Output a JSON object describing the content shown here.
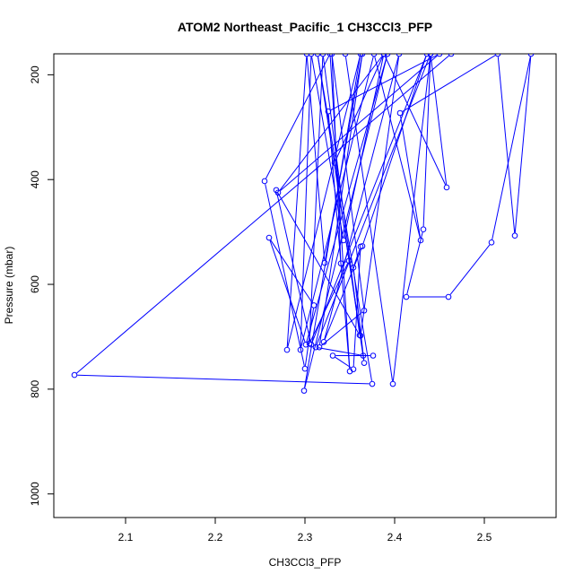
{
  "chart_data": {
    "type": "line",
    "title": "ATOM2 Northeast_Pacific_1 CH3CCl3_PFP",
    "xlabel": "CH3CCl3_PFP",
    "ylabel": "Pressure (mbar)",
    "xlim": [
      2.02,
      2.58
    ],
    "ylim": [
      1045,
      160
    ],
    "y_reversed": true,
    "x_ticks": [
      2.1,
      2.2,
      2.3,
      2.4,
      2.5
    ],
    "x_tick_labels": [
      "2.1",
      "2.2",
      "2.3",
      "2.4",
      "2.5"
    ],
    "y_ticks": [
      200,
      400,
      600,
      800,
      1000
    ],
    "y_tick_labels": [
      "200",
      "400",
      "600",
      "800",
      "1000"
    ],
    "line_color": "#0000ff",
    "marker": "open-circle",
    "series": [
      {
        "points": [
          [
            2.345,
            160
          ],
          [
            2.398,
            790
          ],
          [
            2.44,
            160
          ],
          [
            2.432,
            495
          ],
          [
            2.413,
            624
          ],
          [
            2.46,
            624
          ],
          [
            2.508,
            520
          ],
          [
            2.552,
            160
          ],
          [
            2.534,
            507
          ],
          [
            2.515,
            160
          ],
          [
            2.406,
            273
          ],
          [
            2.429,
            516
          ],
          [
            2.377,
            160
          ],
          [
            2.295,
            725
          ],
          [
            2.307,
            160
          ],
          [
            2.343,
            516
          ],
          [
            2.388,
            160
          ],
          [
            2.333,
            368
          ],
          [
            2.366,
            750
          ],
          [
            2.354,
            568
          ],
          [
            2.362,
            528
          ],
          [
            2.354,
            762
          ],
          [
            2.331,
            736
          ],
          [
            2.376,
            736
          ],
          [
            2.365,
            736
          ],
          [
            2.312,
            720
          ],
          [
            2.44,
            160
          ],
          [
            2.458,
            415
          ],
          [
            2.388,
            160
          ],
          [
            2.27,
            425
          ],
          [
            2.45,
            160
          ],
          [
            2.326,
            270
          ],
          [
            2.35,
            766
          ],
          [
            2.328,
            160
          ],
          [
            2.255,
            403
          ],
          [
            2.3,
            761
          ],
          [
            2.31,
            640
          ],
          [
            2.26,
            511
          ],
          [
            2.301,
            715
          ],
          [
            2.392,
            160
          ],
          [
            2.299,
            803
          ],
          [
            2.362,
            160
          ],
          [
            2.28,
            725
          ],
          [
            2.302,
            160
          ],
          [
            2.322,
            559
          ],
          [
            2.364,
            160
          ],
          [
            2.316,
            720
          ],
          [
            2.366,
            650
          ],
          [
            2.33,
            160
          ],
          [
            2.34,
            560
          ],
          [
            2.349,
            555
          ],
          [
            2.305,
            713
          ],
          [
            2.32,
            160
          ],
          [
            2.361,
            697
          ],
          [
            2.268,
            420
          ],
          [
            2.307,
            715
          ],
          [
            2.436,
            160
          ],
          [
            2.364,
            527
          ],
          [
            2.321,
            710
          ],
          [
            2.405,
            160
          ],
          [
            2.362,
            698
          ],
          [
            2.314,
            160
          ],
          [
            2.375,
            790
          ],
          [
            2.043,
            773
          ],
          [
            2.463,
            160
          ]
        ]
      }
    ]
  }
}
